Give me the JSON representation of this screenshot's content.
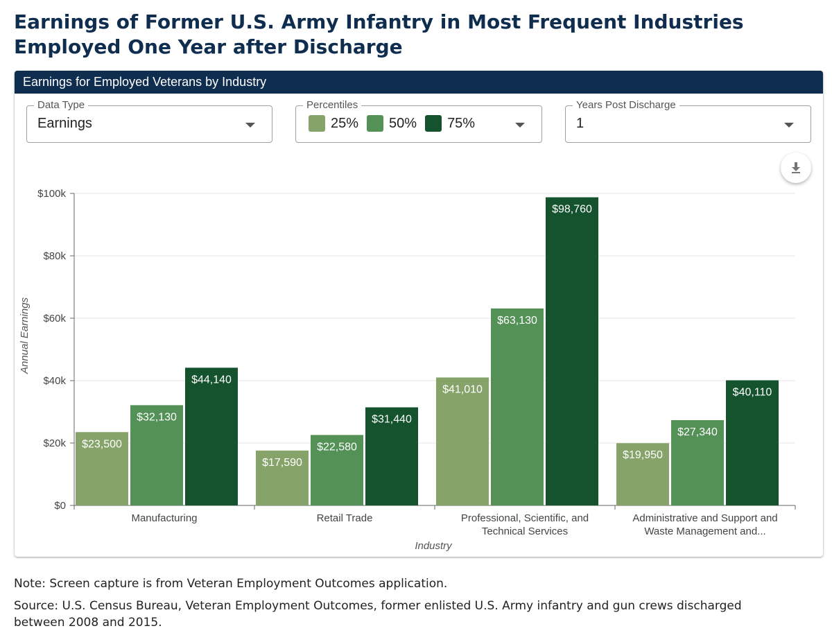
{
  "page": {
    "title": "Earnings of Former U.S. Army Infantry in Most Frequent Industries Employed One Year after Discharge",
    "note": "Note: Screen capture is from Veteran Employment Outcomes application.",
    "source": "Source: U.S. Census Bureau, Veteran Employment Outcomes, former enlisted U.S. Army infantry and gun crews discharged between 2008 and 2015."
  },
  "card": {
    "header": "Earnings for Employed Veterans by Industry",
    "data_type": {
      "label": "Data Type",
      "value": "Earnings"
    },
    "percentiles": {
      "label": "Percentiles",
      "items": [
        {
          "label": "25%",
          "color": "#86a36a"
        },
        {
          "label": "50%",
          "color": "#539157"
        },
        {
          "label": "75%",
          "color": "#14532d"
        }
      ]
    },
    "years_post_discharge": {
      "label": "Years Post Discharge",
      "value": "1"
    },
    "download_icon": "download-icon",
    "dropdown_icon": "caret-down-icon"
  },
  "chart_data": {
    "type": "bar",
    "xlabel": "Industry",
    "ylabel": "Annual Earnings",
    "ylim": [
      0,
      100000
    ],
    "yticks": [
      0,
      20000,
      40000,
      60000,
      80000,
      100000
    ],
    "ytick_labels": [
      "$0",
      "$20k",
      "$40k",
      "$60k",
      "$80k",
      "$100k"
    ],
    "grid": true,
    "categories": [
      [
        "Manufacturing"
      ],
      [
        "Retail Trade"
      ],
      [
        "Professional, Scientific, and",
        "Technical Services"
      ],
      [
        "Administrative and Support and",
        "Waste Management and..."
      ]
    ],
    "series": [
      {
        "name": "25%",
        "color": "#86a36a",
        "values": [
          23500,
          17590,
          41010,
          19950
        ],
        "labels": [
          "$23,500",
          "$17,590",
          "$41,010",
          "$19,950"
        ]
      },
      {
        "name": "50%",
        "color": "#539157",
        "values": [
          32130,
          22580,
          63130,
          27340
        ],
        "labels": [
          "$32,130",
          "$22,580",
          "$63,130",
          "$27,340"
        ]
      },
      {
        "name": "75%",
        "color": "#14532d",
        "values": [
          44140,
          31440,
          98760,
          40110
        ],
        "labels": [
          "$44,140",
          "$31,440",
          "$98,760",
          "$40,110"
        ]
      }
    ]
  }
}
